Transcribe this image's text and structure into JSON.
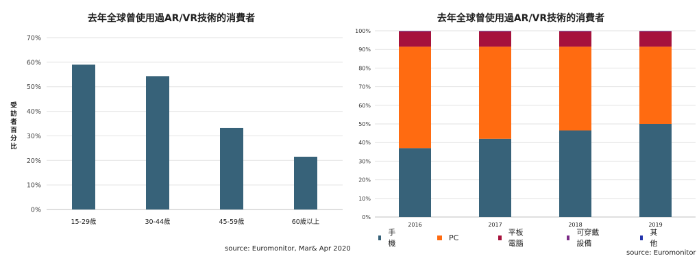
{
  "chart_data": [
    {
      "type": "bar",
      "title": "去年全球曾使用過AR/VR技術的消費者",
      "ylabel": "受訪者百分比",
      "categories": [
        "15-29歲",
        "30-44歲",
        "45-59歲",
        "60歲以上"
      ],
      "values": [
        59,
        54.3,
        33.2,
        21.5
      ],
      "ylim": [
        0,
        70
      ],
      "yticks": [
        "0%",
        "10%",
        "20%",
        "30%",
        "40%",
        "50%",
        "60%",
        "70%"
      ],
      "grid": true,
      "source": "source: Euromonitor, Mar& Apr 2020",
      "colors": {
        "bar": "#376279"
      }
    },
    {
      "type": "bar",
      "stacked": true,
      "title": "去年全球曾使用過AR/VR技術的消費者",
      "categories": [
        "2016",
        "2017",
        "2018",
        "2019"
      ],
      "series": [
        {
          "name": "手機",
          "values": [
            37,
            42,
            46.5,
            50
          ],
          "color": "#376279"
        },
        {
          "name": "PC",
          "values": [
            54.5,
            49.5,
            45,
            41.5
          ],
          "color": "#ff6b11"
        },
        {
          "name": "平板電腦",
          "values": [
            8.2,
            8.2,
            8.2,
            8.2
          ],
          "color": "#a6123c"
        },
        {
          "name": "可穿戴設備",
          "values": [
            0.2,
            0.2,
            0.2,
            0.2
          ],
          "color": "#7b2a86"
        },
        {
          "name": "其他",
          "values": [
            0.1,
            0.1,
            0.1,
            0.1
          ],
          "color": "#2233aa"
        }
      ],
      "ylim": [
        0,
        100
      ],
      "yticks": [
        "0%",
        "10%",
        "20%",
        "30%",
        "40%",
        "50%",
        "60%",
        "70%",
        "80%",
        "90%",
        "100%"
      ],
      "legend_position": "bottom",
      "grid": true,
      "source": "source: Euromonitor"
    }
  ]
}
